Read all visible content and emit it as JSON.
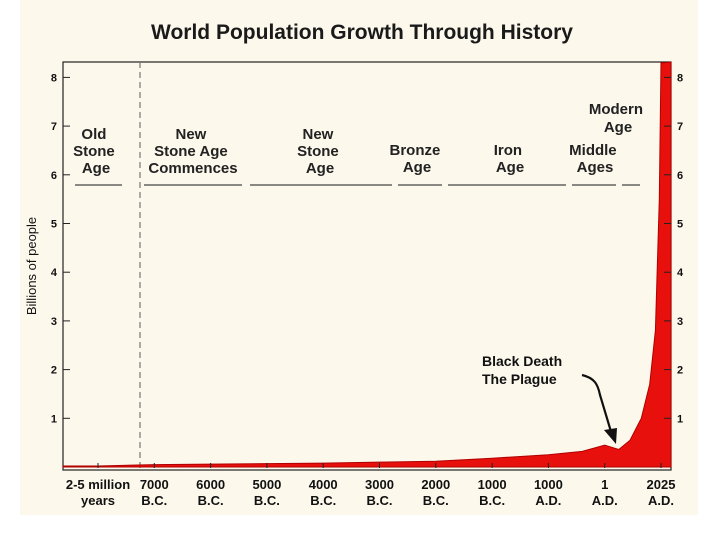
{
  "chart_data": {
    "type": "area",
    "title": "World Population Growth Through History",
    "xlabel": "",
    "ylabel": "Billions of people",
    "ylim": [
      0,
      8
    ],
    "yticks": [
      1,
      2,
      3,
      4,
      5,
      6,
      7,
      8
    ],
    "categories": [
      {
        "top": "2-5 million",
        "bottom": "years"
      },
      {
        "top": "7000",
        "bottom": "B.C."
      },
      {
        "top": "6000",
        "bottom": "B.C."
      },
      {
        "top": "5000",
        "bottom": "B.C."
      },
      {
        "top": "4000",
        "bottom": "B.C."
      },
      {
        "top": "3000",
        "bottom": "B.C."
      },
      {
        "top": "2000",
        "bottom": "B.C."
      },
      {
        "top": "1000",
        "bottom": "B.C."
      },
      {
        "top": "1000",
        "bottom": "A.D."
      },
      {
        "top": "1",
        "bottom": "A.D."
      },
      {
        "top": "2025",
        "bottom": "A.D."
      }
    ],
    "series": [
      {
        "name": "World population",
        "color": "#e8100c",
        "points": [
          [
            0,
            0.02
          ],
          [
            1.0,
            0.05
          ],
          [
            2.0,
            0.06
          ],
          [
            3.0,
            0.07
          ],
          [
            4.0,
            0.08
          ],
          [
            5.0,
            0.1
          ],
          [
            6.0,
            0.12
          ],
          [
            7.0,
            0.18
          ],
          [
            8.0,
            0.25
          ],
          [
            8.6,
            0.32
          ],
          [
            9.0,
            0.45
          ],
          [
            9.25,
            0.36
          ],
          [
            9.45,
            0.55
          ],
          [
            9.65,
            1.0
          ],
          [
            9.8,
            1.7
          ],
          [
            9.9,
            2.8
          ],
          [
            9.97,
            5.5
          ],
          [
            10.0,
            8.3
          ],
          [
            10.05,
            8.3
          ]
        ]
      }
    ],
    "eras": [
      {
        "lines": [
          "Old",
          "Stone",
          "Age"
        ]
      },
      {
        "lines": [
          "New",
          "Stone Age",
          "Commences"
        ]
      },
      {
        "lines": [
          "New",
          "Stone",
          "Age"
        ]
      },
      {
        "lines": [
          "Bronze",
          "Age"
        ]
      },
      {
        "lines": [
          "Iron",
          "Age"
        ]
      },
      {
        "lines": [
          "Middle",
          "Ages"
        ]
      },
      {
        "lines": [
          "Modern",
          "Age"
        ]
      }
    ],
    "annotation": {
      "lines": [
        "Black Death",
        "The Plague"
      ]
    },
    "colors": {
      "background": "#fcf8ec",
      "fill": "#e8100c",
      "axis": "#222222"
    }
  }
}
